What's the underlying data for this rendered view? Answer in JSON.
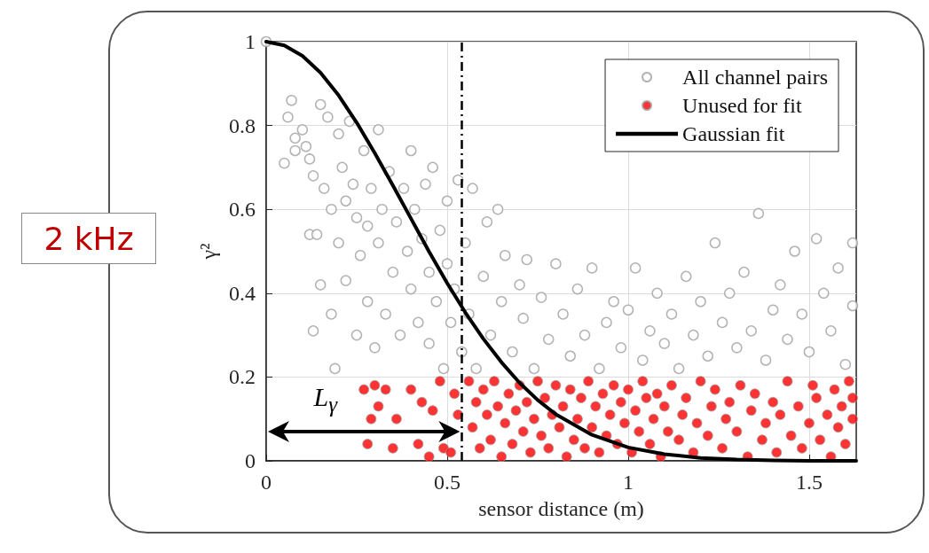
{
  "chart_data": {
    "type": "scatter",
    "xlabel": "sensor distance (m)",
    "ylabel": "γ²",
    "xlim": [
      0,
      1.63
    ],
    "xticks": [
      0,
      0.5,
      1,
      1.5
    ],
    "ylim": [
      0,
      1
    ],
    "yticks": [
      0,
      0.2,
      0.4,
      0.6,
      0.8,
      1
    ],
    "grid": true,
    "legend": "top right",
    "marker": "circle",
    "series": [
      {
        "name": "All channel pairs",
        "color": "#a0a0a0",
        "x": [
          0,
          0.05,
          0.06,
          0.07,
          0.08,
          0.08,
          0.1,
          0.11,
          0.12,
          0.13,
          0.12,
          0.14,
          0.13,
          0.15,
          0.15,
          0.16,
          0.17,
          0.18,
          0.18,
          0.19,
          0.2,
          0.2,
          0.21,
          0.22,
          0.22,
          0.23,
          0.24,
          0.25,
          0.25,
          0.26,
          0.27,
          0.28,
          0.28,
          0.29,
          0.3,
          0.31,
          0.31,
          0.32,
          0.33,
          0.34,
          0.35,
          0.36,
          0.37,
          0.38,
          0.39,
          0.4,
          0.4,
          0.41,
          0.42,
          0.43,
          0.44,
          0.45,
          0.45,
          0.46,
          0.47,
          0.48,
          0.49,
          0.5,
          0.5,
          0.51,
          0.52,
          0.53,
          0.54,
          0.55,
          0.56,
          0.57,
          0.58,
          0.6,
          0.61,
          0.62,
          0.64,
          0.65,
          0.66,
          0.68,
          0.7,
          0.71,
          0.72,
          0.74,
          0.76,
          0.78,
          0.8,
          0.82,
          0.84,
          0.86,
          0.88,
          0.9,
          0.92,
          0.94,
          0.96,
          0.98,
          1.0,
          1.02,
          1.04,
          1.06,
          1.08,
          1.1,
          1.12,
          1.14,
          1.16,
          1.18,
          1.2,
          1.22,
          1.24,
          1.26,
          1.28,
          1.3,
          1.32,
          1.34,
          1.36,
          1.38,
          1.4,
          1.42,
          1.44,
          1.46,
          1.48,
          1.5,
          1.52,
          1.54,
          1.56,
          1.58,
          1.6,
          1.62,
          1.62
        ],
        "values": [
          1,
          0.71,
          0.82,
          0.86,
          0.77,
          0.74,
          0.79,
          0.75,
          0.72,
          0.68,
          0.54,
          0.54,
          0.31,
          0.42,
          0.85,
          0.65,
          0.82,
          0.6,
          0.35,
          0.22,
          0.78,
          0.52,
          0.7,
          0.62,
          0.43,
          0.81,
          0.66,
          0.58,
          0.3,
          0.49,
          0.74,
          0.56,
          0.38,
          0.65,
          0.27,
          0.79,
          0.52,
          0.6,
          0.35,
          0.69,
          0.45,
          0.57,
          0.3,
          0.65,
          0.5,
          0.74,
          0.41,
          0.6,
          0.33,
          0.53,
          0.66,
          0.45,
          0.28,
          0.7,
          0.38,
          0.55,
          0.22,
          0.47,
          0.62,
          0.33,
          0.41,
          0.67,
          0.26,
          0.52,
          0.35,
          0.65,
          0.22,
          0.44,
          0.57,
          0.3,
          0.6,
          0.38,
          0.49,
          0.26,
          0.42,
          0.34,
          0.48,
          0.22,
          0.39,
          0.29,
          0.47,
          0.35,
          0.25,
          0.41,
          0.3,
          0.46,
          0.22,
          0.33,
          0.38,
          0.27,
          0.36,
          0.46,
          0.24,
          0.31,
          0.4,
          0.28,
          0.35,
          0.22,
          0.44,
          0.3,
          0.38,
          0.25,
          0.52,
          0.33,
          0.4,
          0.27,
          0.45,
          0.31,
          0.59,
          0.24,
          0.36,
          0.42,
          0.29,
          0.5,
          0.35,
          0.26,
          0.53,
          0.4,
          0.31,
          0.46,
          0.23,
          0.52,
          0.37
        ]
      },
      {
        "name": "Unused for fit",
        "color": "#ff0000",
        "x": [
          0.27,
          0.28,
          0.29,
          0.3,
          0.31,
          0.33,
          0.35,
          0.36,
          0.4,
          0.42,
          0.43,
          0.45,
          0.46,
          0.48,
          0.49,
          0.51,
          0.52,
          0.53,
          0.56,
          0.57,
          0.58,
          0.59,
          0.6,
          0.61,
          0.62,
          0.63,
          0.64,
          0.65,
          0.66,
          0.67,
          0.68,
          0.69,
          0.7,
          0.71,
          0.72,
          0.73,
          0.74,
          0.75,
          0.76,
          0.77,
          0.78,
          0.79,
          0.8,
          0.81,
          0.82,
          0.83,
          0.84,
          0.85,
          0.86,
          0.87,
          0.88,
          0.89,
          0.9,
          0.91,
          0.92,
          0.93,
          0.94,
          0.95,
          0.96,
          0.97,
          0.98,
          0.99,
          1.0,
          1.01,
          1.02,
          1.03,
          1.04,
          1.05,
          1.06,
          1.07,
          1.08,
          1.09,
          1.1,
          1.11,
          1.12,
          1.14,
          1.15,
          1.16,
          1.18,
          1.19,
          1.2,
          1.22,
          1.23,
          1.24,
          1.26,
          1.27,
          1.28,
          1.3,
          1.31,
          1.33,
          1.34,
          1.35,
          1.37,
          1.38,
          1.4,
          1.41,
          1.42,
          1.44,
          1.45,
          1.47,
          1.48,
          1.5,
          1.51,
          1.52,
          1.53,
          1.55,
          1.56,
          1.57,
          1.58,
          1.59,
          1.6,
          1.61,
          1.62,
          1.62
        ],
        "values": [
          0.17,
          0.04,
          0.1,
          0.18,
          0.13,
          0.17,
          0.03,
          0.1,
          0.17,
          0.04,
          0.14,
          0.01,
          0.12,
          0.19,
          0.03,
          0.02,
          0.16,
          0.11,
          0.19,
          0.08,
          0.14,
          0.03,
          0.17,
          0.11,
          0.05,
          0.19,
          0.13,
          0.01,
          0.09,
          0.16,
          0.04,
          0.12,
          0.18,
          0.07,
          0.14,
          0.02,
          0.1,
          0.19,
          0.06,
          0.15,
          0.03,
          0.11,
          0.18,
          0.08,
          0.13,
          0.01,
          0.17,
          0.05,
          0.1,
          0.15,
          0.03,
          0.19,
          0.08,
          0.13,
          0.02,
          0.16,
          0.06,
          0.11,
          0.18,
          0.04,
          0.14,
          0.09,
          0.17,
          0.02,
          0.12,
          0.07,
          0.19,
          0.15,
          0.04,
          0.1,
          0.16,
          0.01,
          0.13,
          0.07,
          0.18,
          0.05,
          0.11,
          0.15,
          0.02,
          0.09,
          0.19,
          0.06,
          0.13,
          0.17,
          0.03,
          0.1,
          0.14,
          0.07,
          0.18,
          0.01,
          0.12,
          0.16,
          0.05,
          0.09,
          0.14,
          0.02,
          0.11,
          0.19,
          0.06,
          0.13,
          0.03,
          0.09,
          0.18,
          0.15,
          0.05,
          0.11,
          0.01,
          0.17,
          0.08,
          0.13,
          0.04,
          0.19,
          0.1,
          0.15
        ]
      },
      {
        "name": "Gaussian fit",
        "type": "line",
        "color": "#000000",
        "marker": "none",
        "line_style": "solid",
        "x": [
          0,
          0.05,
          0.1,
          0.15,
          0.2,
          0.25,
          0.3,
          0.35,
          0.4,
          0.45,
          0.5,
          0.55,
          0.6,
          0.65,
          0.7,
          0.75,
          0.8,
          0.9,
          1.0,
          1.1,
          1.2,
          1.3,
          1.4,
          1.5,
          1.63
        ],
        "values": [
          1,
          0.991,
          0.966,
          0.926,
          0.872,
          0.807,
          0.734,
          0.657,
          0.578,
          0.499,
          0.424,
          0.354,
          0.291,
          0.235,
          0.186,
          0.145,
          0.111,
          0.062,
          0.032,
          0.016,
          0.007,
          0.003,
          0.001,
          0,
          0
        ]
      }
    ],
    "ref_lines": [
      {
        "axis": "x",
        "value": 0.54,
        "color": "#000000",
        "line_style": "dashed"
      }
    ],
    "annotations": [
      "2 kHz",
      "L$_{γ}$"
    ]
  }
}
